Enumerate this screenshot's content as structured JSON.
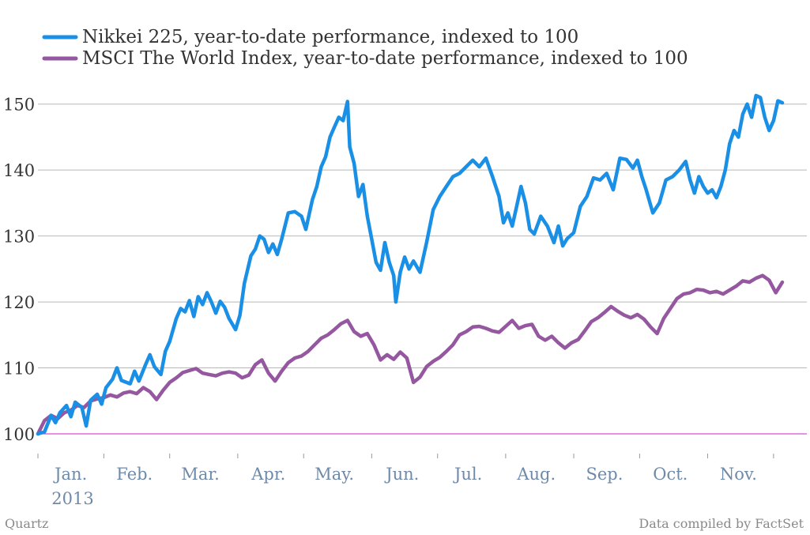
{
  "chart_data": {
    "type": "line",
    "title": "",
    "xlabel": "",
    "ylabel": "",
    "ylim": [
      100,
      155
    ],
    "xlim": [
      "2013-01-01",
      "2013-12-06"
    ],
    "y_ticks": [
      "100",
      "110",
      "120",
      "130",
      "140",
      "150"
    ],
    "y_tick_values": [
      100,
      110,
      120,
      130,
      140,
      150
    ],
    "x_ticks": [
      "Jan.",
      "Feb.",
      "Mar.",
      "Apr.",
      "May.",
      "Jun.",
      "Jul.",
      "Aug.",
      "Sep.",
      "Oct.",
      "Nov."
    ],
    "x_tick_dates": [
      "2013-01-16",
      "2013-02-14",
      "2013-03-16",
      "2013-04-16",
      "2013-05-16",
      "2013-06-16",
      "2013-07-16",
      "2013-08-16",
      "2013-09-16",
      "2013-10-16",
      "2013-11-16"
    ],
    "x_sub_label": "2013",
    "grid": true,
    "legend_position": "top-left",
    "baseline": 100,
    "series": [
      {
        "name": "Nikkei 225, year-to-date performance, indexed to 100",
        "color": "#1a8fe6",
        "points": [
          [
            "2013-01-01",
            100
          ],
          [
            "2013-01-04",
            100.3
          ],
          [
            "2013-01-07",
            102.8
          ],
          [
            "2013-01-09",
            101.7
          ],
          [
            "2013-01-11",
            103.2
          ],
          [
            "2013-01-14",
            104.3
          ],
          [
            "2013-01-16",
            102.6
          ],
          [
            "2013-01-18",
            104.8
          ],
          [
            "2013-01-21",
            104.0
          ],
          [
            "2013-01-23",
            101.2
          ],
          [
            "2013-01-25",
            105.1
          ],
          [
            "2013-01-28",
            106.0
          ],
          [
            "2013-01-30",
            104.5
          ],
          [
            "2013-02-01",
            107.0
          ],
          [
            "2013-02-04",
            108.3
          ],
          [
            "2013-02-06",
            110.0
          ],
          [
            "2013-02-08",
            108.1
          ],
          [
            "2013-02-12",
            107.6
          ],
          [
            "2013-02-14",
            109.5
          ],
          [
            "2013-02-16",
            108.0
          ],
          [
            "2013-02-19",
            110.5
          ],
          [
            "2013-02-21",
            112.0
          ],
          [
            "2013-02-23",
            110.2
          ],
          [
            "2013-02-26",
            109.0
          ],
          [
            "2013-02-28",
            112.5
          ],
          [
            "2013-03-02",
            114.0
          ],
          [
            "2013-03-05",
            117.5
          ],
          [
            "2013-03-07",
            119.0
          ],
          [
            "2013-03-09",
            118.5
          ],
          [
            "2013-03-11",
            120.2
          ],
          [
            "2013-03-13",
            117.8
          ],
          [
            "2013-03-15",
            120.8
          ],
          [
            "2013-03-17",
            119.6
          ],
          [
            "2013-03-19",
            121.4
          ],
          [
            "2013-03-21",
            120.0
          ],
          [
            "2013-03-23",
            118.3
          ],
          [
            "2013-03-25",
            120.1
          ],
          [
            "2013-03-27",
            119.2
          ],
          [
            "2013-03-29",
            117.5
          ],
          [
            "2013-04-01",
            115.8
          ],
          [
            "2013-04-03",
            118.0
          ],
          [
            "2013-04-05",
            122.8
          ],
          [
            "2013-04-08",
            127.0
          ],
          [
            "2013-04-10",
            128.0
          ],
          [
            "2013-04-12",
            130.0
          ],
          [
            "2013-04-14",
            129.5
          ],
          [
            "2013-04-16",
            127.5
          ],
          [
            "2013-04-18",
            128.8
          ],
          [
            "2013-04-20",
            127.2
          ],
          [
            "2013-04-22",
            129.5
          ],
          [
            "2013-04-25",
            133.5
          ],
          [
            "2013-04-28",
            133.7
          ],
          [
            "2013-05-01",
            133.0
          ],
          [
            "2013-05-03",
            131.0
          ],
          [
            "2013-05-06",
            135.5
          ],
          [
            "2013-05-08",
            137.5
          ],
          [
            "2013-05-10",
            140.5
          ],
          [
            "2013-05-12",
            142.0
          ],
          [
            "2013-05-14",
            145.0
          ],
          [
            "2013-05-16",
            146.5
          ],
          [
            "2013-05-18",
            148.0
          ],
          [
            "2013-05-20",
            147.5
          ],
          [
            "2013-05-22",
            150.4
          ],
          [
            "2013-05-23",
            143.5
          ],
          [
            "2013-05-25",
            141.0
          ],
          [
            "2013-05-27",
            136.0
          ],
          [
            "2013-05-29",
            137.8
          ],
          [
            "2013-05-31",
            133.0
          ],
          [
            "2013-06-02",
            129.5
          ],
          [
            "2013-06-04",
            126.0
          ],
          [
            "2013-06-06",
            124.8
          ],
          [
            "2013-06-08",
            129.0
          ],
          [
            "2013-06-10",
            126.0
          ],
          [
            "2013-06-12",
            124.0
          ],
          [
            "2013-06-13",
            120.0
          ],
          [
            "2013-06-15",
            124.5
          ],
          [
            "2013-06-17",
            126.8
          ],
          [
            "2013-06-19",
            125.0
          ],
          [
            "2013-06-21",
            126.2
          ],
          [
            "2013-06-24",
            124.5
          ],
          [
            "2013-06-27",
            129.0
          ],
          [
            "2013-06-30",
            134.0
          ],
          [
            "2013-07-03",
            136.0
          ],
          [
            "2013-07-06",
            137.5
          ],
          [
            "2013-07-09",
            139.0
          ],
          [
            "2013-07-12",
            139.5
          ],
          [
            "2013-07-15",
            140.5
          ],
          [
            "2013-07-18",
            141.5
          ],
          [
            "2013-07-21",
            140.5
          ],
          [
            "2013-07-24",
            141.8
          ],
          [
            "2013-07-27",
            139.0
          ],
          [
            "2013-07-30",
            136.0
          ],
          [
            "2013-08-01",
            132.0
          ],
          [
            "2013-08-03",
            133.5
          ],
          [
            "2013-08-05",
            131.5
          ],
          [
            "2013-08-07",
            134.5
          ],
          [
            "2013-08-09",
            137.5
          ],
          [
            "2013-08-11",
            135.0
          ],
          [
            "2013-08-13",
            131.0
          ],
          [
            "2013-08-15",
            130.3
          ],
          [
            "2013-08-18",
            133.0
          ],
          [
            "2013-08-21",
            131.5
          ],
          [
            "2013-08-24",
            129.0
          ],
          [
            "2013-08-26",
            131.5
          ],
          [
            "2013-08-28",
            128.5
          ],
          [
            "2013-08-30",
            129.6
          ],
          [
            "2013-09-02",
            130.5
          ],
          [
            "2013-09-05",
            134.5
          ],
          [
            "2013-09-08",
            136.0
          ],
          [
            "2013-09-11",
            138.8
          ],
          [
            "2013-09-14",
            138.5
          ],
          [
            "2013-09-17",
            139.5
          ],
          [
            "2013-09-20",
            137.0
          ],
          [
            "2013-09-23",
            141.8
          ],
          [
            "2013-09-26",
            141.6
          ],
          [
            "2013-09-29",
            140.3
          ],
          [
            "2013-10-01",
            141.5
          ],
          [
            "2013-10-03",
            139.0
          ],
          [
            "2013-10-05",
            137.0
          ],
          [
            "2013-10-08",
            133.5
          ],
          [
            "2013-10-11",
            135.0
          ],
          [
            "2013-10-14",
            138.5
          ],
          [
            "2013-10-17",
            139.0
          ],
          [
            "2013-10-20",
            140.0
          ],
          [
            "2013-10-23",
            141.3
          ],
          [
            "2013-10-25",
            138.5
          ],
          [
            "2013-10-27",
            136.5
          ],
          [
            "2013-10-29",
            139.0
          ],
          [
            "2013-10-31",
            137.5
          ],
          [
            "2013-11-02",
            136.5
          ],
          [
            "2013-11-04",
            137.0
          ],
          [
            "2013-11-06",
            135.8
          ],
          [
            "2013-11-08",
            137.5
          ],
          [
            "2013-11-10",
            140.0
          ],
          [
            "2013-11-12",
            144.0
          ],
          [
            "2013-11-14",
            146.0
          ],
          [
            "2013-11-16",
            145.0
          ],
          [
            "2013-11-18",
            148.5
          ],
          [
            "2013-11-20",
            150.0
          ],
          [
            "2013-11-22",
            148.0
          ],
          [
            "2013-11-24",
            151.3
          ],
          [
            "2013-11-26",
            151.0
          ],
          [
            "2013-11-28",
            148.0
          ],
          [
            "2013-11-30",
            146.0
          ],
          [
            "2013-12-02",
            147.5
          ],
          [
            "2013-12-04",
            150.5
          ],
          [
            "2013-12-06",
            150.2
          ]
        ]
      },
      {
        "name": "MSCI The World Index, year-to-date performance, indexed to 100",
        "color": "#9558a0",
        "points": [
          [
            "2013-01-01",
            100
          ],
          [
            "2013-01-04",
            102.0
          ],
          [
            "2013-01-07",
            102.8
          ],
          [
            "2013-01-10",
            102.3
          ],
          [
            "2013-01-13",
            103.2
          ],
          [
            "2013-01-16",
            103.6
          ],
          [
            "2013-01-19",
            104.3
          ],
          [
            "2013-01-22",
            104.0
          ],
          [
            "2013-01-25",
            105.0
          ],
          [
            "2013-01-28",
            105.3
          ],
          [
            "2013-01-31",
            105.5
          ],
          [
            "2013-02-03",
            105.9
          ],
          [
            "2013-02-06",
            105.6
          ],
          [
            "2013-02-09",
            106.2
          ],
          [
            "2013-02-12",
            106.4
          ],
          [
            "2013-02-15",
            106.1
          ],
          [
            "2013-02-18",
            107.0
          ],
          [
            "2013-02-21",
            106.4
          ],
          [
            "2013-02-24",
            105.2
          ],
          [
            "2013-02-27",
            106.6
          ],
          [
            "2013-03-02",
            107.8
          ],
          [
            "2013-03-05",
            108.5
          ],
          [
            "2013-03-08",
            109.3
          ],
          [
            "2013-03-11",
            109.6
          ],
          [
            "2013-03-14",
            109.9
          ],
          [
            "2013-03-17",
            109.2
          ],
          [
            "2013-03-20",
            109.0
          ],
          [
            "2013-03-23",
            108.8
          ],
          [
            "2013-03-26",
            109.2
          ],
          [
            "2013-03-29",
            109.4
          ],
          [
            "2013-04-01",
            109.2
          ],
          [
            "2013-04-04",
            108.5
          ],
          [
            "2013-04-07",
            108.9
          ],
          [
            "2013-04-10",
            110.5
          ],
          [
            "2013-04-13",
            111.2
          ],
          [
            "2013-04-16",
            109.2
          ],
          [
            "2013-04-19",
            108.0
          ],
          [
            "2013-04-22",
            109.5
          ],
          [
            "2013-04-25",
            110.8
          ],
          [
            "2013-04-28",
            111.5
          ],
          [
            "2013-05-01",
            111.8
          ],
          [
            "2013-05-04",
            112.5
          ],
          [
            "2013-05-07",
            113.5
          ],
          [
            "2013-05-10",
            114.5
          ],
          [
            "2013-05-13",
            115.0
          ],
          [
            "2013-05-16",
            115.8
          ],
          [
            "2013-05-19",
            116.7
          ],
          [
            "2013-05-22",
            117.2
          ],
          [
            "2013-05-25",
            115.5
          ],
          [
            "2013-05-28",
            114.8
          ],
          [
            "2013-05-31",
            115.2
          ],
          [
            "2013-06-03",
            113.5
          ],
          [
            "2013-06-06",
            111.2
          ],
          [
            "2013-06-09",
            112.0
          ],
          [
            "2013-06-12",
            111.3
          ],
          [
            "2013-06-15",
            112.4
          ],
          [
            "2013-06-18",
            111.5
          ],
          [
            "2013-06-21",
            107.8
          ],
          [
            "2013-06-24",
            108.6
          ],
          [
            "2013-06-27",
            110.2
          ],
          [
            "2013-06-30",
            111.0
          ],
          [
            "2013-07-03",
            111.6
          ],
          [
            "2013-07-06",
            112.5
          ],
          [
            "2013-07-09",
            113.5
          ],
          [
            "2013-07-12",
            115.0
          ],
          [
            "2013-07-15",
            115.5
          ],
          [
            "2013-07-18",
            116.2
          ],
          [
            "2013-07-21",
            116.3
          ],
          [
            "2013-07-24",
            116.0
          ],
          [
            "2013-07-27",
            115.6
          ],
          [
            "2013-07-30",
            115.4
          ],
          [
            "2013-08-02",
            116.3
          ],
          [
            "2013-08-05",
            117.2
          ],
          [
            "2013-08-08",
            116.0
          ],
          [
            "2013-08-11",
            116.4
          ],
          [
            "2013-08-14",
            116.6
          ],
          [
            "2013-08-17",
            114.8
          ],
          [
            "2013-08-20",
            114.2
          ],
          [
            "2013-08-23",
            114.8
          ],
          [
            "2013-08-26",
            113.8
          ],
          [
            "2013-08-29",
            113.0
          ],
          [
            "2013-09-01",
            113.8
          ],
          [
            "2013-09-04",
            114.3
          ],
          [
            "2013-09-07",
            115.6
          ],
          [
            "2013-09-10",
            117.0
          ],
          [
            "2013-09-13",
            117.6
          ],
          [
            "2013-09-16",
            118.4
          ],
          [
            "2013-09-19",
            119.3
          ],
          [
            "2013-09-22",
            118.6
          ],
          [
            "2013-09-25",
            118.0
          ],
          [
            "2013-09-28",
            117.6
          ],
          [
            "2013-10-01",
            118.1
          ],
          [
            "2013-10-04",
            117.4
          ],
          [
            "2013-10-07",
            116.2
          ],
          [
            "2013-10-10",
            115.2
          ],
          [
            "2013-10-13",
            117.5
          ],
          [
            "2013-10-16",
            119.0
          ],
          [
            "2013-10-19",
            120.5
          ],
          [
            "2013-10-22",
            121.2
          ],
          [
            "2013-10-25",
            121.4
          ],
          [
            "2013-10-28",
            121.9
          ],
          [
            "2013-10-31",
            121.8
          ],
          [
            "2013-11-03",
            121.4
          ],
          [
            "2013-11-06",
            121.6
          ],
          [
            "2013-11-09",
            121.2
          ],
          [
            "2013-11-12",
            121.8
          ],
          [
            "2013-11-15",
            122.4
          ],
          [
            "2013-11-18",
            123.2
          ],
          [
            "2013-11-21",
            123.0
          ],
          [
            "2013-11-24",
            123.6
          ],
          [
            "2013-11-27",
            124.0
          ],
          [
            "2013-11-30",
            123.3
          ],
          [
            "2013-12-03",
            121.4
          ],
          [
            "2013-12-06",
            123.0
          ]
        ]
      }
    ]
  },
  "footer": {
    "source_left": "Quartz",
    "source_right": "Data compiled by FactSet"
  }
}
